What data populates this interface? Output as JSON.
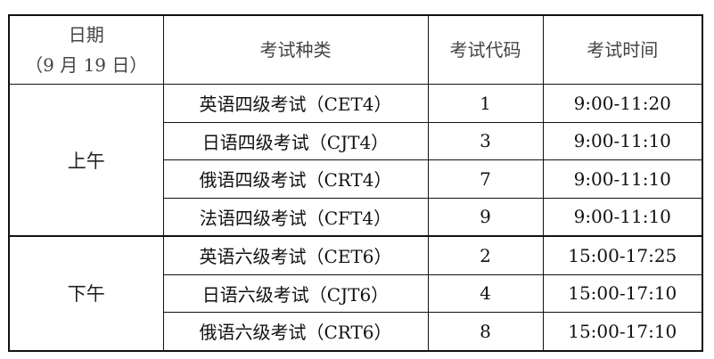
{
  "header": {
    "date_line1": "日期",
    "date_line2": "（9 月 19 日）",
    "exam_type": "考试种类",
    "exam_code": "考试代码",
    "exam_time": "考试时间"
  },
  "groups": [
    {
      "period": "上午",
      "rows": [
        {
          "type": "英语四级考试（CET4）",
          "code": "1",
          "time": "9:00-11:20"
        },
        {
          "type": "日语四级考试（CJT4）",
          "code": "3",
          "time": "9:00-11:10"
        },
        {
          "type": "俄语四级考试（CRT4）",
          "code": "7",
          "time": "9:00-11:10"
        },
        {
          "type": "法语四级考试（CFT4）",
          "code": "9",
          "time": "9:00-11:10"
        }
      ]
    },
    {
      "period": "下午",
      "rows": [
        {
          "type": "英语六级考试（CET6）",
          "code": "2",
          "time": "15:00-17:25"
        },
        {
          "type": "日语六级考试（CJT6）",
          "code": "4",
          "time": "15:00-17:10"
        },
        {
          "type": "俄语六级考试（CRT6）",
          "code": "8",
          "time": "15:00-17:10"
        }
      ]
    }
  ]
}
